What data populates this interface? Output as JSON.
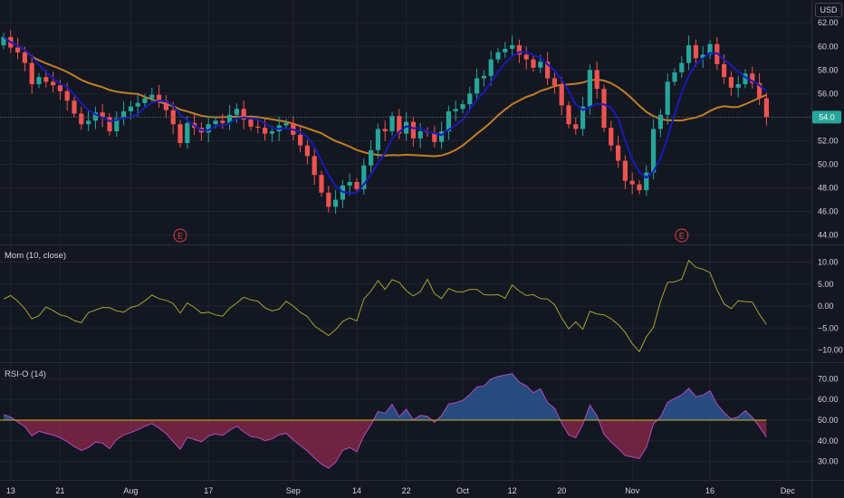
{
  "currency": "USD",
  "last_price_label": "54.0",
  "colors": {
    "background": "#131722",
    "grid": "#1f2430",
    "up": "#26a69a",
    "down": "#ef5350",
    "ma_fast": "#1a1ab8",
    "ma_slow": "#c17f24",
    "momentum": "#a6a32c",
    "rsi_up": "#2f5d9e",
    "rsi_down": "#8e2a4a",
    "earnings": "#d9443f",
    "last_price": "#26a69a"
  },
  "chart_data": [
    {
      "type": "candlestick",
      "pane": "price",
      "y_axis_ticks": [
        62,
        60,
        58,
        56,
        54,
        52,
        50,
        48,
        46,
        44
      ],
      "y_tick_labels": [
        "62.00",
        "60.00",
        "58.00",
        "56.00",
        "54.00",
        "52.00",
        "50.00",
        "48.00",
        "46.00",
        "44.00"
      ],
      "ylim": [
        43.2,
        63.4
      ],
      "x_tick_labels": [
        "13",
        "21",
        "Aug",
        "17",
        "Sep",
        "14",
        "22",
        "Oct",
        "12",
        "20",
        "Nov",
        "16",
        "Dec"
      ],
      "earnings_markers": [
        "E",
        "E"
      ],
      "close": [
        60.8,
        59.9,
        59.5,
        58.6,
        56.8,
        57.4,
        57.0,
        56.7,
        56.2,
        55.4,
        54.3,
        53.4,
        53.7,
        54.4,
        54.0,
        52.8,
        53.9,
        54.5,
        54.9,
        55.2,
        55.6,
        55.9,
        55.4,
        54.6,
        53.4,
        51.8,
        53.5,
        53.1,
        52.7,
        53.4,
        53.7,
        53.5,
        54.2,
        54.7,
        53.8,
        53.2,
        53.1,
        52.6,
        52.8,
        53.3,
        53.5,
        52.5,
        51.6,
        50.7,
        49.1,
        47.6,
        46.4,
        47.0,
        48.2,
        48.5,
        47.9,
        49.9,
        51.2,
        53.0,
        52.8,
        54.1,
        52.6,
        53.6,
        52.2,
        52.8,
        52.7,
        51.9,
        52.8,
        54.5,
        54.7,
        55.1,
        56.0,
        57.3,
        57.5,
        58.9,
        59.5,
        59.8,
        60.1,
        59.3,
        58.9,
        58.2,
        58.7,
        57.3,
        56.7,
        55.0,
        53.4,
        53.0,
        54.9,
        58.0,
        56.4,
        53.1,
        51.6,
        50.3,
        48.6,
        48.3,
        47.8,
        49.3,
        53.0,
        54.2,
        57.0,
        57.8,
        58.6,
        60.1,
        59.0,
        59.3,
        60.2,
        58.5,
        57.4,
        56.5,
        56.8,
        57.7,
        56.9,
        55.6,
        54.0
      ],
      "open": [
        60.1,
        60.8,
        59.9,
        59.5,
        58.6,
        56.8,
        57.4,
        57.0,
        56.7,
        56.2,
        55.4,
        54.3,
        53.4,
        53.7,
        54.4,
        54.0,
        52.8,
        53.9,
        54.5,
        54.9,
        55.2,
        55.6,
        55.9,
        55.4,
        54.6,
        53.4,
        51.8,
        53.5,
        53.1,
        52.7,
        53.4,
        53.7,
        53.5,
        54.2,
        54.7,
        53.8,
        53.2,
        53.1,
        52.6,
        52.8,
        53.3,
        53.5,
        52.5,
        51.6,
        50.7,
        49.1,
        47.6,
        46.4,
        47.0,
        48.2,
        48.5,
        47.9,
        49.9,
        51.2,
        53.0,
        52.8,
        54.1,
        52.6,
        53.6,
        52.2,
        52.8,
        52.7,
        51.9,
        52.8,
        54.5,
        54.7,
        55.1,
        56.0,
        57.3,
        57.5,
        58.9,
        59.5,
        59.8,
        60.1,
        59.3,
        58.9,
        58.2,
        58.7,
        57.3,
        56.7,
        55.0,
        53.4,
        53.0,
        54.9,
        58.0,
        56.4,
        53.1,
        51.6,
        50.3,
        48.6,
        48.3,
        47.8,
        49.3,
        53.0,
        54.2,
        57.0,
        57.8,
        58.6,
        60.1,
        59.0,
        59.3,
        60.2,
        58.5,
        57.4,
        56.5,
        56.8,
        57.7,
        56.9,
        55.6
      ]
    },
    {
      "type": "line",
      "pane": "momentum",
      "title": "Mom (10, close)",
      "y_axis_ticks": [
        10,
        5,
        0,
        -5,
        -10
      ],
      "y_tick_labels": [
        "10.00",
        "5.00",
        "0.00",
        "−5.00",
        "−10.00"
      ],
      "ylim": [
        -11.2,
        11.2
      ],
      "values": [
        1.6,
        2.4,
        1.1,
        -0.6,
        -2.9,
        -2.2,
        -0.2,
        -1.0,
        -2.0,
        -2.4,
        -3.3,
        -3.8,
        -1.5,
        -0.9,
        -0.3,
        -0.4,
        -1.1,
        -1.4,
        -0.3,
        0.1,
        1.2,
        2.5,
        1.7,
        1.3,
        0.6,
        -1.6,
        0.7,
        -0.3,
        -1.6,
        -1.4,
        -2.0,
        -2.3,
        -0.5,
        0.7,
        2.0,
        1.4,
        1.1,
        -0.4,
        -1.1,
        -0.7,
        1.1,
        0.0,
        -1.4,
        -2.4,
        -4.5,
        -5.6,
        -6.7,
        -5.4,
        -3.5,
        -2.7,
        -3.4,
        1.6,
        3.4,
        5.8,
        3.8,
        6.0,
        5.4,
        3.5,
        2.3,
        3.3,
        6.1,
        2.8,
        1.7,
        4.0,
        3.3,
        3.2,
        3.8,
        3.8,
        2.6,
        2.5,
        2.6,
        1.8,
        4.8,
        3.4,
        2.4,
        2.6,
        1.7,
        1.6,
        0.3,
        -2.7,
        -5.2,
        -3.6,
        -5.3,
        -1.2,
        -1.8,
        -2.0,
        -2.9,
        -4.2,
        -6.0,
        -8.6,
        -10.4,
        -7.0,
        -4.8,
        1.1,
        5.4,
        5.5,
        6.1,
        10.4,
        8.8,
        8.4,
        7.6,
        3.7,
        0.5,
        -0.6,
        1.2,
        1.0,
        0.9,
        -1.9,
        -4.2
      ],
      "color": "#a6a32c"
    },
    {
      "type": "area",
      "pane": "rsi",
      "title": "RSI-O (14)",
      "y_axis_ticks": [
        70,
        60,
        50,
        40,
        30
      ],
      "y_tick_labels": [
        "70.00",
        "60.00",
        "50.00",
        "40.00",
        "30.00"
      ],
      "ylim": [
        25,
        73
      ],
      "baseline": 50,
      "values": [
        52.7,
        51.5,
        49.1,
        46.9,
        42.4,
        44.6,
        43.6,
        42.8,
        41.5,
        39.6,
        37.2,
        35.3,
        36.7,
        39.4,
        38.9,
        36.2,
        40.6,
        42.8,
        44.0,
        45.3,
        47.1,
        48.3,
        46.2,
        43.5,
        39.7,
        35.9,
        41.7,
        40.6,
        39.5,
        42.3,
        43.3,
        42.6,
        45.1,
        47.1,
        44.3,
        42.0,
        41.6,
        40.1,
        40.9,
        42.9,
        43.6,
        40.4,
        37.7,
        35.1,
        31.7,
        28.7,
        26.7,
        29.6,
        35.5,
        36.7,
        34.7,
        42.4,
        47.7,
        54.2,
        53.3,
        57.7,
        51.6,
        55.2,
        50.2,
        52.3,
        51.9,
        48.9,
        52.2,
        57.8,
        58.4,
        59.6,
        62.4,
        66.1,
        66.6,
        69.9,
        71.2,
        71.8,
        72.5,
        68.4,
        66.6,
        63.3,
        65.2,
        58.5,
        55.8,
        48.6,
        42.8,
        41.5,
        48.0,
        57.2,
        52.1,
        43.2,
        39.4,
        36.3,
        32.8,
        32.2,
        31.3,
        36.8,
        48.2,
        51.5,
        58.7,
        60.5,
        62.2,
        65.4,
        61.4,
        62.1,
        64.2,
        57.7,
        53.7,
        50.6,
        51.6,
        54.6,
        51.4,
        46.8,
        41.7
      ]
    }
  ]
}
